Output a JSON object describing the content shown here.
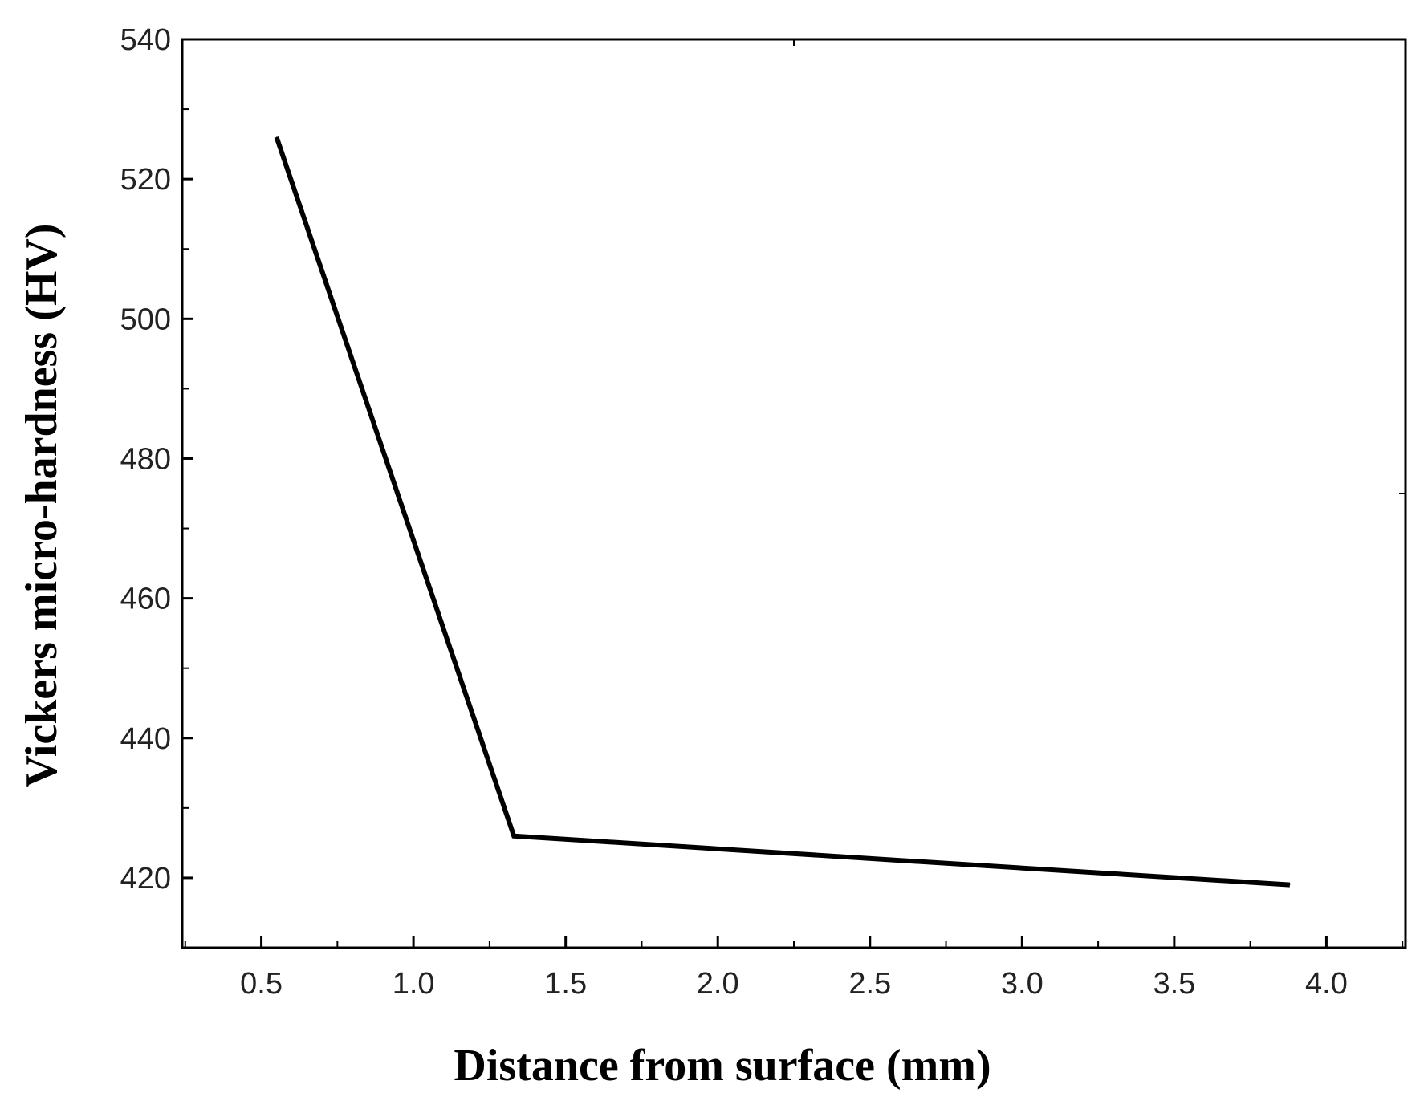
{
  "chart_data": {
    "type": "line",
    "title": "",
    "xlabel": "Distance from surface (mm)",
    "ylabel": "Vickers micro-hardness (HV)",
    "xlim": [
      0.24,
      4.26
    ],
    "ylim": [
      410,
      540
    ],
    "x_ticks": [
      "0.5",
      "1.0",
      "1.5",
      "2.0",
      "2.5",
      "3.0",
      "3.5",
      "4.0"
    ],
    "y_ticks": [
      "420",
      "440",
      "460",
      "480",
      "500",
      "520",
      "540"
    ],
    "grid": false,
    "legend": "none",
    "series": [
      {
        "color": "#000000",
        "x": [
          0.55,
          1.33,
          2.6,
          3.88
        ],
        "y": [
          526,
          426,
          422.5,
          419
        ]
      }
    ]
  }
}
